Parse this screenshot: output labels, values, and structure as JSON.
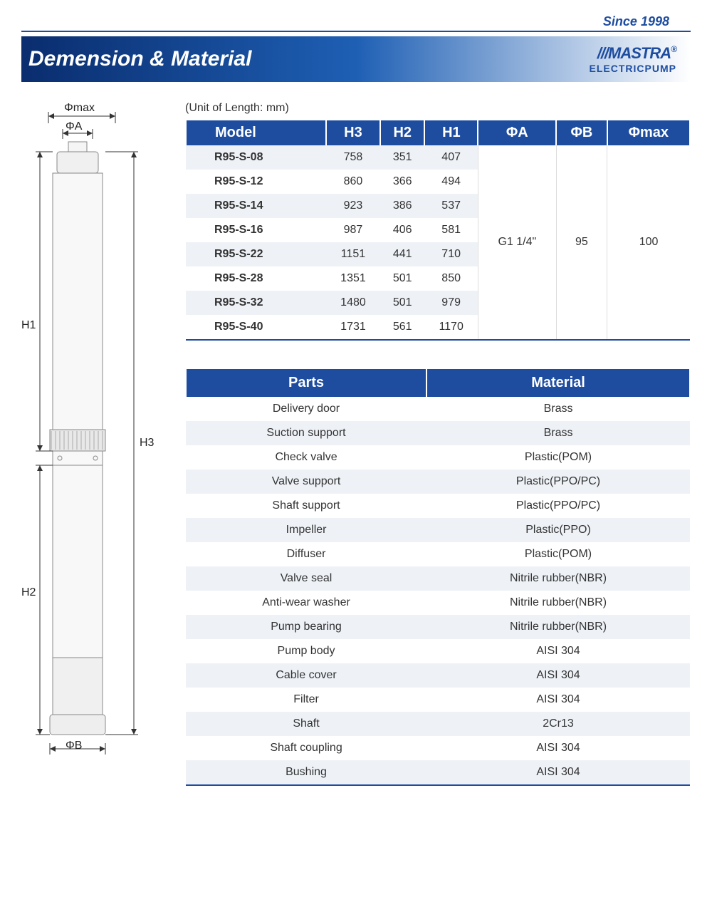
{
  "tagline": "Since 1998",
  "header": {
    "title": "Demension & Material"
  },
  "brand": {
    "name": "M⁠A⁠S⁠T⁠R⁠A",
    "sub": "ELECTRICPUMP",
    "reg": "®"
  },
  "unit_note": "(Unit of Length: mm)",
  "diagram": {
    "labels": {
      "phimax": "Φmax",
      "phiA": "ΦA",
      "phiB": "ΦB",
      "H1": "H1",
      "H2": "H2",
      "H3": "H3"
    }
  },
  "dim_table": {
    "columns": [
      "Model",
      "H3",
      "H2",
      "H1",
      "ΦA",
      "ΦB",
      "Φmax"
    ],
    "rows": [
      {
        "model": "R95-S-08",
        "h3": "758",
        "h2": "351",
        "h1": "407"
      },
      {
        "model": "R95-S-12",
        "h3": "860",
        "h2": "366",
        "h1": "494"
      },
      {
        "model": "R95-S-14",
        "h3": "923",
        "h2": "386",
        "h1": "537"
      },
      {
        "model": "R95-S-16",
        "h3": "987",
        "h2": "406",
        "h1": "581"
      },
      {
        "model": "R95-S-22",
        "h3": "1151",
        "h2": "441",
        "h1": "710"
      },
      {
        "model": "R95-S-28",
        "h3": "1351",
        "h2": "501",
        "h1": "850"
      },
      {
        "model": "R95-S-32",
        "h3": "1480",
        "h2": "501",
        "h1": "979"
      },
      {
        "model": "R95-S-40",
        "h3": "1731",
        "h2": "561",
        "h1": "1170"
      }
    ],
    "shared": {
      "phiA": "G1 1/4\"",
      "phiB": "95",
      "phimax": "100"
    }
  },
  "mat_table": {
    "columns": [
      "Parts",
      "Material"
    ],
    "rows": [
      {
        "part": "Delivery door",
        "mat": "Brass"
      },
      {
        "part": "Suction support",
        "mat": "Brass"
      },
      {
        "part": "Check valve",
        "mat": "Plastic(POM)"
      },
      {
        "part": "Valve support",
        "mat": "Plastic(PPO/PC)"
      },
      {
        "part": "Shaft support",
        "mat": "Plastic(PPO/PC)"
      },
      {
        "part": "Impeller",
        "mat": "Plastic(PPO)"
      },
      {
        "part": "Diffuser",
        "mat": "Plastic(POM)"
      },
      {
        "part": "Valve seal",
        "mat": "Nitrile rubber(NBR)"
      },
      {
        "part": "Anti-wear washer",
        "mat": "Nitrile rubber(NBR)"
      },
      {
        "part": "Pump bearing",
        "mat": "Nitrile rubber(NBR)"
      },
      {
        "part": "Pump body",
        "mat": "AISI 304"
      },
      {
        "part": "Cable cover",
        "mat": "AISI 304"
      },
      {
        "part": "Filter",
        "mat": "AISI 304"
      },
      {
        "part": "Shaft",
        "mat": "2Cr13"
      },
      {
        "part": "Shaft coupling",
        "mat": "AISI 304"
      },
      {
        "part": "Bushing",
        "mat": "AISI 304"
      }
    ]
  },
  "colors": {
    "brand_blue": "#1e4da0",
    "header_dark": "#0a2d6e",
    "header_light": "#1e5fb4",
    "row_alt": "#eef2f7"
  }
}
